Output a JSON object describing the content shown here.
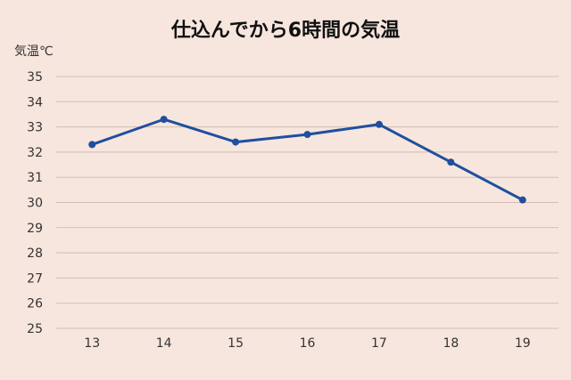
{
  "chart_data": {
    "type": "line",
    "title": "仕込んでから6時間の気温",
    "xlabel": "",
    "ylabel": "気温℃",
    "x": [
      13,
      14,
      15,
      16,
      17,
      18,
      19
    ],
    "series": [
      {
        "values": [
          32.3,
          33.3,
          32.4,
          32.7,
          33.1,
          31.6,
          30.1
        ]
      }
    ],
    "ylim": [
      25,
      35
    ],
    "yticks": [
      25,
      26,
      27,
      28,
      29,
      30,
      31,
      32,
      33,
      34,
      35
    ],
    "grid": true,
    "legend": "none",
    "colors": {
      "line": "#1f4f9e",
      "background": "#f7e6de",
      "grid": "#d2bdb3"
    }
  }
}
